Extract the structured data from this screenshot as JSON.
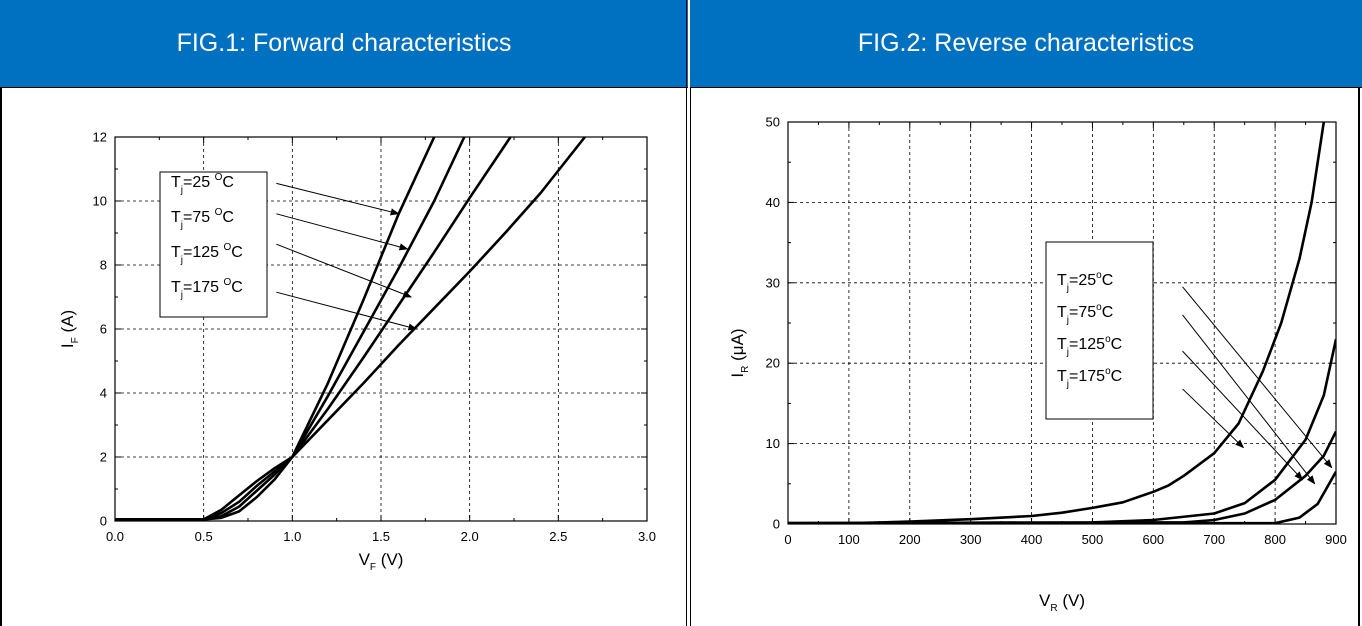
{
  "panels": [
    {
      "header": "FIG.1: Forward characteristics"
    },
    {
      "header": "FIG.2: Reverse characteristics"
    }
  ],
  "chart_data": [
    {
      "type": "line",
      "title": "FIG.1: Forward characteristics",
      "xlabel": {
        "main": "V",
        "sub": "F",
        "unit": " (V)"
      },
      "ylabel": {
        "main": "I",
        "sub": "F",
        "unit": " (A)"
      },
      "xlim": [
        0,
        3.0
      ],
      "ylim": [
        0,
        12
      ],
      "x_ticks": [
        "0.0",
        "0.5",
        "1.0",
        "1.5",
        "2.0",
        "2.5",
        "3.0"
      ],
      "y_ticks": [
        "0",
        "2",
        "4",
        "6",
        "8",
        "10",
        "12"
      ],
      "grid": true,
      "legend_position": "top-left",
      "series": [
        {
          "name": "Tj=25 °C",
          "label": {
            "pre": "T",
            "sub": "j",
            "mid": "=25 ",
            "sup": "O",
            "post": "C"
          },
          "points": [
            [
              0,
              0.05
            ],
            [
              0.5,
              0.05
            ],
            [
              0.6,
              0.1
            ],
            [
              0.7,
              0.3
            ],
            [
              0.8,
              0.75
            ],
            [
              0.9,
              1.3
            ],
            [
              1.0,
              2.0
            ],
            [
              1.2,
              4.3
            ],
            [
              1.4,
              6.9
            ],
            [
              1.6,
              9.6
            ],
            [
              1.8,
              12.0
            ]
          ]
        },
        {
          "name": "Tj=75 °C",
          "label": {
            "pre": "T",
            "sub": "j",
            "mid": "=75 ",
            "sup": "O",
            "post": "C"
          },
          "points": [
            [
              0,
              0.05
            ],
            [
              0.5,
              0.05
            ],
            [
              0.6,
              0.15
            ],
            [
              0.7,
              0.45
            ],
            [
              0.8,
              0.95
            ],
            [
              0.9,
              1.45
            ],
            [
              1.0,
              2.0
            ],
            [
              1.2,
              3.9
            ],
            [
              1.4,
              5.9
            ],
            [
              1.6,
              7.9
            ],
            [
              1.8,
              10.0
            ],
            [
              1.97,
              12.0
            ]
          ]
        },
        {
          "name": "Tj=125 °C",
          "label": {
            "pre": "T",
            "sub": "j",
            "mid": "=125 ",
            "sup": "O",
            "post": "C"
          },
          "points": [
            [
              0,
              0.05
            ],
            [
              0.5,
              0.05
            ],
            [
              0.6,
              0.25
            ],
            [
              0.7,
              0.6
            ],
            [
              0.8,
              1.1
            ],
            [
              0.9,
              1.55
            ],
            [
              1.0,
              2.0
            ],
            [
              1.2,
              3.5
            ],
            [
              1.4,
              5.1
            ],
            [
              1.6,
              6.75
            ],
            [
              1.8,
              8.4
            ],
            [
              2.0,
              10.1
            ],
            [
              2.23,
              12.0
            ]
          ]
        },
        {
          "name": "Tj=175 °C",
          "label": {
            "pre": "T",
            "sub": "j",
            "mid": "=175 ",
            "sup": "O",
            "post": "C"
          },
          "points": [
            [
              0,
              0.05
            ],
            [
              0.5,
              0.05
            ],
            [
              0.6,
              0.35
            ],
            [
              0.7,
              0.8
            ],
            [
              0.8,
              1.25
            ],
            [
              0.9,
              1.65
            ],
            [
              1.0,
              2.0
            ],
            [
              1.2,
              3.15
            ],
            [
              1.4,
              4.3
            ],
            [
              1.6,
              5.5
            ],
            [
              1.8,
              6.65
            ],
            [
              2.0,
              7.8
            ],
            [
              2.2,
              9.0
            ],
            [
              2.4,
              10.25
            ],
            [
              2.65,
              12.0
            ]
          ]
        }
      ],
      "annotations": [
        {
          "series": 0,
          "from": [
            0.91,
            10.55
          ],
          "to": [
            1.6,
            9.6
          ]
        },
        {
          "series": 1,
          "from": [
            0.91,
            9.6
          ],
          "to": [
            1.65,
            8.5
          ]
        },
        {
          "series": 2,
          "from": [
            0.91,
            8.65
          ],
          "to": [
            1.67,
            7.0
          ]
        },
        {
          "series": 3,
          "from": [
            0.91,
            7.15
          ],
          "to": [
            1.7,
            6.0
          ]
        }
      ]
    },
    {
      "type": "line",
      "title": "FIG.2: Reverse characteristics",
      "xlabel": {
        "main": "V",
        "sub": "R",
        "unit": " (V)"
      },
      "ylabel": {
        "main": "I",
        "sub": "R",
        "unit": " (μA)"
      },
      "xlim": [
        0,
        900
      ],
      "ylim": [
        0,
        50
      ],
      "x_ticks": [
        "0",
        "100",
        "200",
        "300",
        "400",
        "500",
        "600",
        "700",
        "800",
        "900"
      ],
      "y_ticks": [
        "0",
        "10",
        "20",
        "30",
        "40",
        "50"
      ],
      "grid": true,
      "legend_position": "center-right",
      "series": [
        {
          "name": "Tj=25°C",
          "label": {
            "pre": "T",
            "sub": "j",
            "mid": "=25",
            "sup": "o",
            "post": "C"
          },
          "points": [
            [
              0,
              0.1
            ],
            [
              800,
              0.1
            ],
            [
              840,
              0.8
            ],
            [
              870,
              2.5
            ],
            [
              900,
              6.5
            ]
          ]
        },
        {
          "name": "Tj=75°C",
          "label": {
            "pre": "T",
            "sub": "j",
            "mid": "=75",
            "sup": "o",
            "post": "C"
          },
          "points": [
            [
              0,
              0.1
            ],
            [
              650,
              0.2
            ],
            [
              700,
              0.5
            ],
            [
              750,
              1.3
            ],
            [
              800,
              3.0
            ],
            [
              850,
              6.0
            ],
            [
              880,
              8.5
            ],
            [
              900,
              11.5
            ]
          ]
        },
        {
          "name": "Tj=125°C",
          "label": {
            "pre": "T",
            "sub": "j",
            "mid": "=125",
            "sup": "o",
            "post": "C"
          },
          "points": [
            [
              0,
              0.1
            ],
            [
              500,
              0.2
            ],
            [
              600,
              0.5
            ],
            [
              700,
              1.3
            ],
            [
              750,
              2.6
            ],
            [
              800,
              5.5
            ],
            [
              850,
              10.5
            ],
            [
              880,
              16.0
            ],
            [
              900,
              23.0
            ]
          ]
        },
        {
          "name": "Tj=175°C",
          "label": {
            "pre": "T",
            "sub": "j",
            "mid": "=175",
            "sup": "o",
            "post": "C"
          },
          "points": [
            [
              0,
              0.1
            ],
            [
              100,
              0.1
            ],
            [
              200,
              0.3
            ],
            [
              300,
              0.6
            ],
            [
              400,
              1.0
            ],
            [
              450,
              1.4
            ],
            [
              500,
              2.0
            ],
            [
              550,
              2.7
            ],
            [
              600,
              4.0
            ],
            [
              625,
              4.8
            ],
            [
              650,
              6.0
            ],
            [
              700,
              8.8
            ],
            [
              740,
              12.5
            ],
            [
              780,
              19.0
            ],
            [
              810,
              25.0
            ],
            [
              840,
              33.0
            ],
            [
              860,
              40.0
            ],
            [
              880,
              50.0
            ]
          ]
        }
      ],
      "annotations": [
        {
          "series": 0,
          "from": [
            648,
            29.5
          ],
          "to": [
            893,
            7.0
          ]
        },
        {
          "series": 1,
          "from": [
            648,
            26.0
          ],
          "to": [
            865,
            5.0
          ]
        },
        {
          "series": 2,
          "from": [
            648,
            21.5
          ],
          "to": [
            845,
            5.5
          ]
        },
        {
          "series": 3,
          "from": [
            648,
            16.8
          ],
          "to": [
            748,
            9.5
          ]
        }
      ]
    }
  ]
}
